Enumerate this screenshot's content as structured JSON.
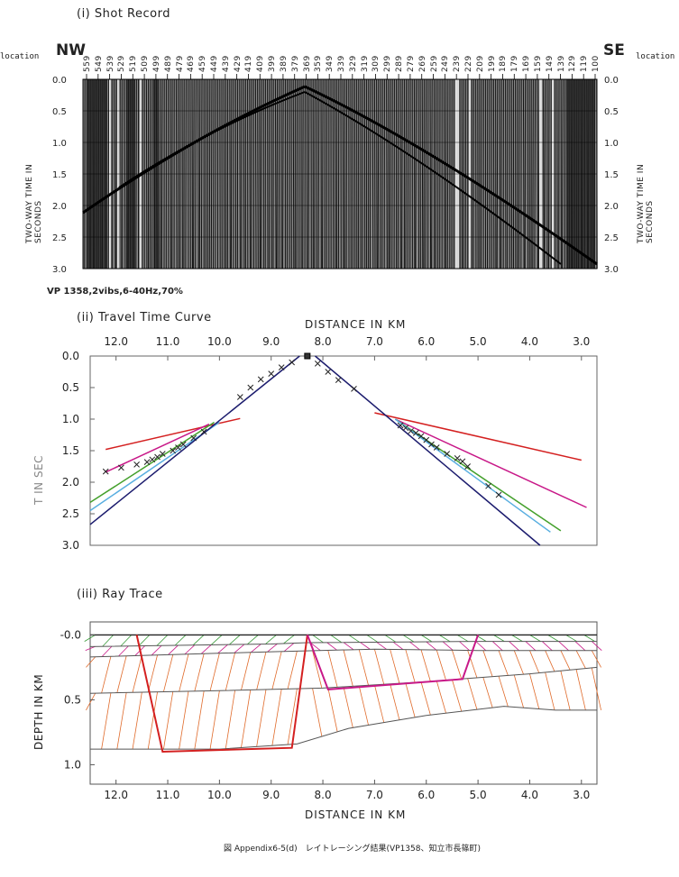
{
  "panel1": {
    "title": "(i) Shot Record",
    "left_dir": "NW",
    "right_dir": "SE",
    "location_label": "location",
    "station_labels": [
      "559",
      "549",
      "539",
      "529",
      "519",
      "509",
      "499",
      "489",
      "479",
      "469",
      "459",
      "449",
      "439",
      "429",
      "419",
      "409",
      "399",
      "389",
      "379",
      "369",
      "359",
      "349",
      "339",
      "329",
      "319",
      "309",
      "299",
      "289",
      "279",
      "269",
      "259",
      "249",
      "239",
      "229",
      "209",
      "199",
      "189",
      "179",
      "169",
      "159",
      "149",
      "139",
      "129",
      "119",
      "100"
    ],
    "time_ticks": [
      "0.0",
      "0.5",
      "1.0",
      "1.5",
      "2.0",
      "2.5",
      "3.0"
    ],
    "ylabel": "TWO-WAY TIME IN SECONDS",
    "caption": "VP 1358,2vibs,6-40Hz,70%"
  },
  "panel2": {
    "title": "(ii) Travel Time Curve"
  },
  "panel3": {
    "title": "(iii) Ray Trace"
  },
  "figure_caption": "図 Appendix6-5(d)　レイトレーシング結果(VP1358、知立市長篠町)",
  "chart_data": [
    {
      "type": "scatter",
      "title": "Travel Time Curve",
      "xlabel": "DISTANCE IN KM",
      "ylabel": "T IN SEC",
      "x_ticks": [
        "12.0",
        "11.0",
        "10.0",
        "9.0",
        "8.0",
        "7.0",
        "6.0",
        "5.0",
        "4.0",
        "3.0"
      ],
      "y_ticks": [
        "0.0",
        "0.5",
        "1.0",
        "1.5",
        "2.0",
        "2.5",
        "3.0"
      ],
      "xlim": [
        12.5,
        2.7
      ],
      "ylim": [
        0,
        3.0
      ],
      "source_x": 8.3,
      "observed_picks": {
        "x": [
          12.2,
          11.9,
          11.6,
          11.4,
          11.3,
          11.2,
          11.1,
          10.9,
          10.8,
          10.7,
          10.5,
          10.3,
          9.6,
          9.4,
          9.2,
          9.0,
          8.8,
          8.6,
          8.1,
          7.9,
          7.7,
          7.4,
          6.5,
          6.4,
          6.3,
          6.2,
          6.1,
          6.0,
          5.9,
          5.8,
          5.6,
          5.4,
          5.3,
          5.2,
          4.8,
          4.6
        ],
        "y": [
          1.83,
          1.77,
          1.72,
          1.68,
          1.64,
          1.6,
          1.55,
          1.5,
          1.45,
          1.4,
          1.3,
          1.2,
          0.65,
          0.5,
          0.37,
          0.28,
          0.18,
          0.1,
          0.12,
          0.25,
          0.38,
          0.52,
          1.1,
          1.14,
          1.19,
          1.22,
          1.27,
          1.33,
          1.4,
          1.45,
          1.55,
          1.62,
          1.67,
          1.75,
          2.06,
          2.2
        ]
      },
      "series": [
        {
          "color": "#d42020",
          "x": [
            12.2,
            9.6
          ],
          "y": [
            1.48,
            0.99
          ]
        },
        {
          "color": "#d42020",
          "x": [
            7.0,
            3.0
          ],
          "y": [
            0.9,
            1.65
          ]
        },
        {
          "color": "#c81888",
          "x": [
            12.2,
            10.2
          ],
          "y": [
            1.84,
            1.08
          ]
        },
        {
          "color": "#c81888",
          "x": [
            6.6,
            2.9
          ],
          "y": [
            1.0,
            2.4
          ]
        },
        {
          "color": "#44a02c",
          "x": [
            12.5,
            10.1
          ],
          "y": [
            2.32,
            1.05
          ]
        },
        {
          "color": "#44a02c",
          "x": [
            6.6,
            3.4
          ],
          "y": [
            1.0,
            2.77
          ]
        },
        {
          "color": "#58aee0",
          "x": [
            12.5,
            10.0
          ],
          "y": [
            2.45,
            1.05
          ]
        },
        {
          "color": "#58aee0",
          "x": [
            6.6,
            3.6
          ],
          "y": [
            1.0,
            2.79
          ]
        },
        {
          "color": "#1c1c6e",
          "x": [
            12.5,
            8.45
          ],
          "y": [
            2.67,
            0.0
          ]
        },
        {
          "color": "#1c1c6e",
          "x": [
            8.15,
            3.8
          ],
          "y": [
            0.0,
            3.0
          ]
        }
      ]
    },
    {
      "type": "line",
      "title": "Ray Trace",
      "xlabel": "DISTANCE IN KM",
      "ylabel": "DEPTH IN KM",
      "x_ticks": [
        "12.0",
        "11.0",
        "10.0",
        "9.0",
        "8.0",
        "7.0",
        "6.0",
        "5.0",
        "4.0",
        "3.0"
      ],
      "y_ticks": [
        "-0.0",
        "0.5",
        "1.0"
      ],
      "xlim": [
        12.5,
        2.7
      ],
      "ylim": [
        -0.1,
        1.15
      ],
      "source_x": 8.3,
      "layers": [
        {
          "name": "surface",
          "x": [
            12.5,
            2.7
          ],
          "y": [
            0.0,
            0.0
          ]
        },
        {
          "name": "boundary1",
          "x": [
            12.5,
            9.0,
            8.3,
            5.0,
            2.7
          ],
          "y": [
            0.09,
            0.07,
            0.06,
            0.05,
            0.05
          ]
        },
        {
          "name": "boundary2",
          "x": [
            12.5,
            9.0,
            7.0,
            5.0,
            2.7
          ],
          "y": [
            0.17,
            0.13,
            0.11,
            0.12,
            0.12
          ]
        },
        {
          "name": "boundary3",
          "x": [
            12.5,
            10.0,
            8.0,
            6.0,
            4.0,
            2.7
          ],
          "y": [
            0.45,
            0.43,
            0.41,
            0.36,
            0.3,
            0.25
          ]
        },
        {
          "name": "boundary4",
          "x": [
            12.5,
            10.0,
            8.5,
            7.5,
            6.0,
            4.5,
            3.5,
            2.7
          ],
          "y": [
            0.88,
            0.88,
            0.84,
            0.72,
            0.62,
            0.55,
            0.58,
            0.58
          ]
        }
      ],
      "ray_paths": [
        {
          "color": "#d42020",
          "x": [
            11.6,
            11.1,
            8.6,
            8.3
          ],
          "y": [
            0.0,
            0.9,
            0.87,
            0.0
          ]
        },
        {
          "color": "#c81888",
          "x": [
            8.3,
            7.9,
            5.3,
            5.0
          ],
          "y": [
            0.0,
            0.42,
            0.34,
            0.0
          ]
        }
      ]
    }
  ]
}
